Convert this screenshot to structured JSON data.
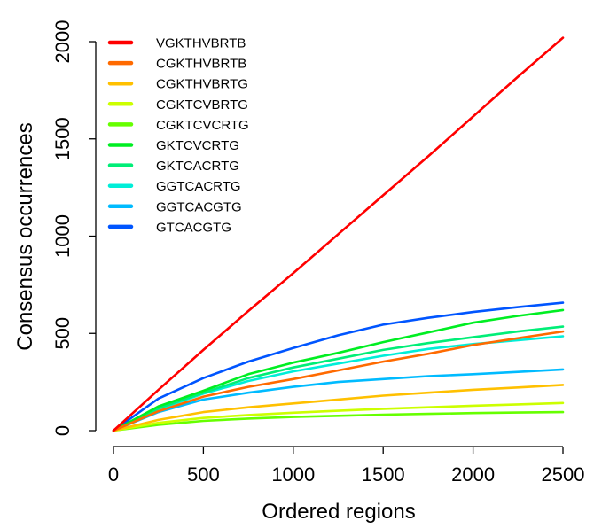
{
  "chart_data": {
    "type": "line",
    "title": "",
    "xlabel": "Ordered regions",
    "ylabel": "Consensus occurrences",
    "xlim": [
      0,
      2500
    ],
    "ylim": [
      0,
      2000
    ],
    "xticks": [
      "0",
      "500",
      "1000",
      "1500",
      "2000",
      "2500"
    ],
    "yticks": [
      "0",
      "500",
      "1000",
      "1500",
      "2000"
    ],
    "grid": false,
    "legend_position": "top-left",
    "series": [
      {
        "name": "VGKTHVBRTB",
        "color": "#FF0000",
        "x": [
          0,
          250,
          500,
          750,
          1000,
          1250,
          1500,
          1750,
          2000,
          2250,
          2500
        ],
        "y": [
          0,
          210,
          415,
          615,
          810,
          1010,
          1210,
          1410,
          1615,
          1820,
          2020
        ]
      },
      {
        "name": "CGKTHVBRTB",
        "color": "#FF6A00",
        "x": [
          0,
          250,
          500,
          750,
          1000,
          1250,
          1500,
          1750,
          2000,
          2250,
          2500
        ],
        "y": [
          0,
          100,
          175,
          225,
          265,
          310,
          355,
          395,
          440,
          475,
          510
        ]
      },
      {
        "name": "CGKTHVBRTG",
        "color": "#FFC000",
        "x": [
          0,
          250,
          500,
          750,
          1000,
          1250,
          1500,
          1750,
          2000,
          2250,
          2500
        ],
        "y": [
          0,
          55,
          95,
          120,
          140,
          160,
          180,
          195,
          210,
          222,
          235
        ]
      },
      {
        "name": "CGKTCVBRTG",
        "color": "#CCFF00",
        "x": [
          0,
          250,
          500,
          750,
          1000,
          1250,
          1500,
          1750,
          2000,
          2250,
          2500
        ],
        "y": [
          0,
          40,
          65,
          80,
          92,
          102,
          112,
          120,
          128,
          135,
          142
        ]
      },
      {
        "name": "CGKTCVCRTG",
        "color": "#66FF00",
        "x": [
          0,
          250,
          500,
          750,
          1000,
          1250,
          1500,
          1750,
          2000,
          2250,
          2500
        ],
        "y": [
          0,
          30,
          50,
          62,
          70,
          76,
          82,
          86,
          90,
          93,
          95
        ]
      },
      {
        "name": "GKTCVCRTG",
        "color": "#00EE22",
        "x": [
          0,
          250,
          500,
          750,
          1000,
          1250,
          1500,
          1750,
          2000,
          2250,
          2500
        ],
        "y": [
          0,
          125,
          205,
          290,
          350,
          400,
          455,
          505,
          555,
          590,
          620
        ]
      },
      {
        "name": "GKTCACRTG",
        "color": "#00EE77",
        "x": [
          0,
          250,
          500,
          750,
          1000,
          1250,
          1500,
          1750,
          2000,
          2250,
          2500
        ],
        "y": [
          0,
          115,
          195,
          270,
          325,
          370,
          415,
          450,
          480,
          510,
          535
        ]
      },
      {
        "name": "GGTCACRTG",
        "color": "#00EED8",
        "x": [
          0,
          250,
          500,
          750,
          1000,
          1250,
          1500,
          1750,
          2000,
          2250,
          2500
        ],
        "y": [
          0,
          110,
          190,
          255,
          305,
          345,
          385,
          420,
          445,
          465,
          485
        ]
      },
      {
        "name": "GGTCACGTG",
        "color": "#00BBFF",
        "x": [
          0,
          250,
          500,
          750,
          1000,
          1250,
          1500,
          1750,
          2000,
          2250,
          2500
        ],
        "y": [
          0,
          95,
          160,
          195,
          225,
          250,
          265,
          280,
          290,
          302,
          315
        ]
      },
      {
        "name": "GTCACGTG",
        "color": "#0055FF",
        "x": [
          0,
          250,
          500,
          750,
          1000,
          1250,
          1500,
          1750,
          2000,
          2250,
          2500
        ],
        "y": [
          0,
          165,
          270,
          355,
          425,
          490,
          545,
          580,
          610,
          635,
          658
        ]
      }
    ]
  }
}
